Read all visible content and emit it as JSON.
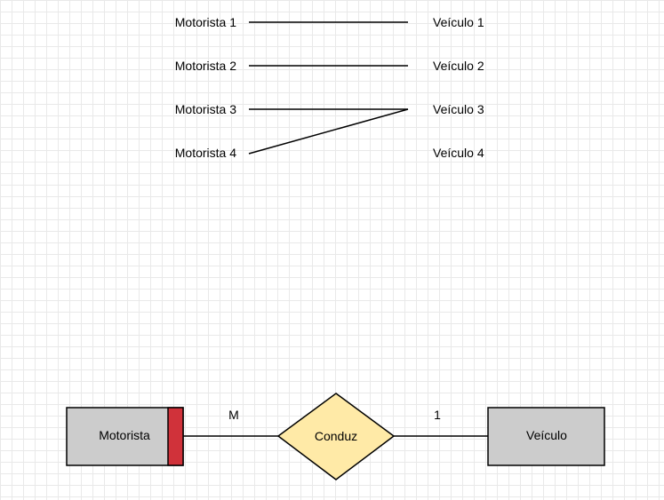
{
  "mapping": {
    "left": [
      "Motorista 1",
      "Motorista 2",
      "Motorista 3",
      "Motorista 4"
    ],
    "right": [
      "Veículo 1",
      "Veículo 2",
      "Veículo 3",
      "Veículo 4"
    ],
    "links": [
      [
        1,
        1
      ],
      [
        2,
        2
      ],
      [
        3,
        3
      ],
      [
        4,
        3
      ]
    ]
  },
  "er": {
    "entity_left": "Motorista",
    "relationship": "Conduz",
    "entity_right": "Veículo",
    "cardinality_left": "M",
    "cardinality_right": "1"
  },
  "colors": {
    "entity_fill": "#cccccc",
    "relationship_fill": "#ffeaa7",
    "weak_marker": "#d0323a"
  }
}
